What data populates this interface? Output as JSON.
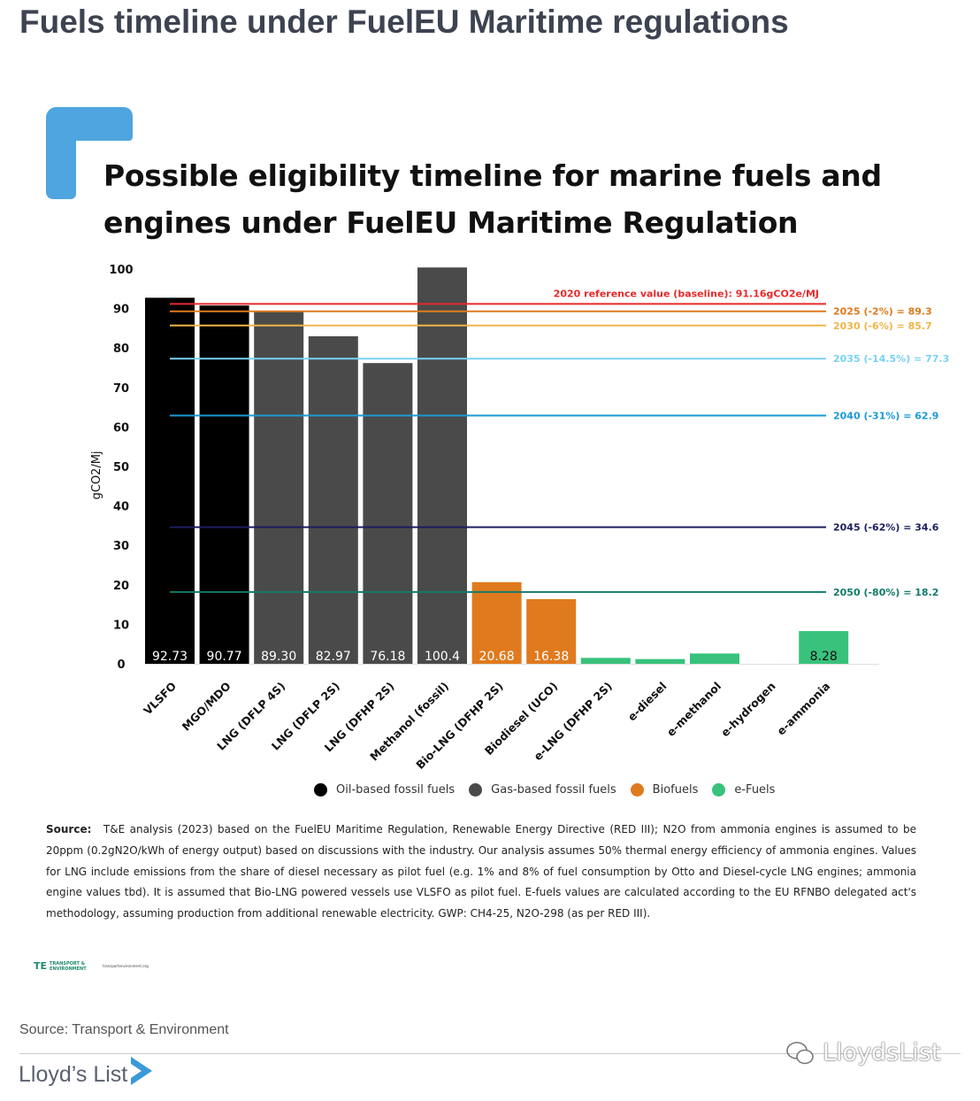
{
  "page": {
    "title": "Fuels timeline under FuelEU Maritime regulations",
    "footer_source": "Source: Transport & Environment",
    "brand": "Lloyd’s List",
    "watermark": "LloydsList"
  },
  "colors": {
    "oil": "#000000",
    "gas": "#4a4a4a",
    "bio": "#e07a1e",
    "efuel": "#38c27c",
    "accent": "#4ea5df"
  },
  "chart_data": {
    "type": "bar",
    "title": "Possible eligibility timeline for marine fuels and engines under FuelEU Maritime Regulation",
    "ylabel": "gCO2/Mj",
    "ylim": [
      0,
      100
    ],
    "yticks": [
      0,
      10,
      20,
      30,
      40,
      50,
      60,
      70,
      80,
      90,
      100
    ],
    "grid": false,
    "categories": [
      "VLSFO",
      "MGO/MDO",
      "LNG (DFLP 4S)",
      "LNG (DFLP 2S)",
      "LNG (DFHP 2S)",
      "Methanol (fossil)",
      "Bio-LNG (DFHP 2S)",
      "Biodiesel (UCO)",
      "e-LNG (DFHP 2S)",
      "e-diesel",
      "e-methanol",
      "e-hydrogen",
      "e-ammonia"
    ],
    "values": [
      92.73,
      90.77,
      89.3,
      82.97,
      76.18,
      100.4,
      20.68,
      16.38,
      1.5,
      1.2,
      2.6,
      0,
      8.28
    ],
    "value_labels": [
      "92.73",
      "90.77",
      "89.30",
      "82.97",
      "76.18",
      "100.4",
      "20.68",
      "16.38",
      "",
      "",
      "",
      "",
      "8.28"
    ],
    "groups": [
      "oil",
      "oil",
      "gas",
      "gas",
      "gas",
      "gas",
      "bio",
      "bio",
      "efuel",
      "efuel",
      "efuel",
      "efuel",
      "efuel"
    ],
    "reference_lines": [
      {
        "label": "2020 reference value (baseline): 91.16gCO2e/MJ",
        "value": 91.16,
        "color": "#e8292a"
      },
      {
        "label": "2025 (-2%) = 89.3",
        "value": 89.3,
        "color": "#e07a1e"
      },
      {
        "label": "2030 (-6%) = 85.7",
        "value": 85.7,
        "color": "#efb547"
      },
      {
        "label": "2035 (-14.5%) = 77.3",
        "value": 77.3,
        "color": "#78d2f2"
      },
      {
        "label": "2040 (-31%) = 62.9",
        "value": 62.9,
        "color": "#1b9ad6"
      },
      {
        "label": "2045 (-62%) = 34.6",
        "value": 34.6,
        "color": "#1c1f5e"
      },
      {
        "label": "2050 (-80%) = 18.2",
        "value": 18.2,
        "color": "#127a6a"
      }
    ],
    "legend": [
      {
        "label": "Oil-based fossil fuels",
        "group": "oil"
      },
      {
        "label": "Gas-based fossil fuels",
        "group": "gas"
      },
      {
        "label": "Biofuels",
        "group": "bio"
      },
      {
        "label": "e-Fuels",
        "group": "efuel"
      }
    ],
    "legend_position": "bottom"
  },
  "source_note": {
    "label": "Source:",
    "text": "T&E analysis (2023) based on the FuelEU Maritime Regulation, Renewable Energy Directive (RED III); N2O from ammonia engines is assumed to be 20ppm (0.2gN2O/kWh of energy output) based on discussions with the industry. Our analysis assumes 50% thermal energy efficiency of ammonia engines. Values for LNG include emissions from the share of diesel necessary as pilot fuel (e.g. 1% and 8% of fuel consumption by Otto and Diesel-cycle LNG engines; ammonia engine values tbd). It is assumed that Bio-LNG powered vessels use VLSFO as pilot fuel. E-fuels values are calculated according to the EU RFNBO delegated act's methodology, assuming production from additional renewable electricity. GWP: CH4-25, N2O-298 (as per RED III)."
  },
  "te_logo": {
    "mark": "TE",
    "name": "TRANSPORT & ENVIRONMENT",
    "social": "transportenvironment.org"
  }
}
